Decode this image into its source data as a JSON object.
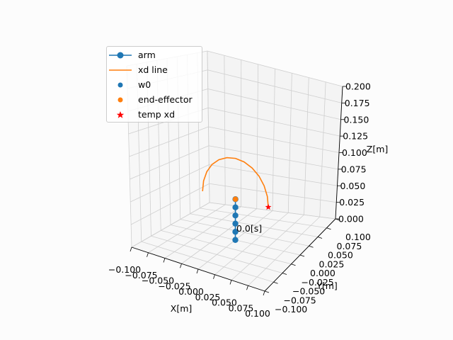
{
  "chart_data": {
    "type": "line",
    "projection": "3d",
    "title": "",
    "xlabel": "X[m]",
    "ylabel": "Y[m]",
    "zlabel": "Z[m]",
    "xlim": [
      -0.1,
      0.1
    ],
    "ylim": [
      -0.1,
      0.1
    ],
    "zlim": [
      0.0,
      0.2
    ],
    "x_ticks": [
      "−0.100",
      "−0.075",
      "−0.050",
      "−0.025",
      "0.000",
      "0.025",
      "0.050",
      "0.075",
      "0.100"
    ],
    "y_ticks": [
      "−0.100",
      "−0.075",
      "−0.050",
      "−0.025",
      "0.000",
      "0.025",
      "0.050",
      "0.075",
      "0.100"
    ],
    "z_ticks": [
      "0.000",
      "0.025",
      "0.050",
      "0.075",
      "0.100",
      "0.125",
      "0.150",
      "0.175",
      "0.200"
    ],
    "grid": true,
    "legend_position": "upper-left",
    "annotation": "0.0[s]",
    "colors": {
      "arm": "#1f77b4",
      "xd_line": "#ff7f0e",
      "w0": "#1f77b4",
      "end_effector": "#ff7f0e",
      "temp_xd": "#ff0000"
    },
    "series": [
      {
        "name": "arm",
        "kind": "line-marker",
        "points": [
          [
            0,
            0,
            0.0
          ],
          [
            0,
            0,
            0.01
          ],
          [
            0,
            0,
            0.02
          ],
          [
            0,
            0,
            0.03
          ],
          [
            0,
            0,
            0.04
          ],
          [
            0,
            0,
            0.05
          ]
        ]
      },
      {
        "name": "xd line",
        "kind": "line",
        "points": [
          [
            0.05,
            0,
            0.05
          ],
          [
            0.0483,
            0,
            0.0629
          ],
          [
            0.0433,
            0,
            0.075
          ],
          [
            0.0354,
            0,
            0.0854
          ],
          [
            0.025,
            0,
            0.0933
          ],
          [
            0.0129,
            0,
            0.0983
          ],
          [
            0,
            0,
            0.1
          ],
          [
            -0.0129,
            0,
            0.0983
          ],
          [
            -0.025,
            0,
            0.0933
          ],
          [
            -0.0354,
            0,
            0.0854
          ],
          [
            -0.0433,
            0,
            0.075
          ],
          [
            -0.0483,
            0,
            0.0629
          ],
          [
            -0.05,
            0,
            0.05
          ]
        ]
      },
      {
        "name": "w0",
        "kind": "scatter",
        "points": [
          [
            0,
            0,
            0.0
          ]
        ]
      },
      {
        "name": "end-effector",
        "kind": "scatter",
        "points": [
          [
            0,
            0,
            0.05
          ]
        ]
      },
      {
        "name": "temp xd",
        "kind": "star",
        "points": [
          [
            0.05,
            0,
            0.05
          ]
        ]
      }
    ]
  }
}
